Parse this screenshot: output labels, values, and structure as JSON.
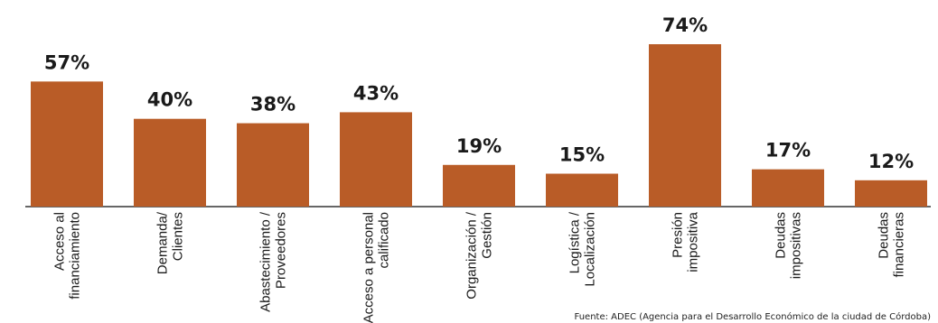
{
  "chart_data": {
    "type": "bar",
    "categories": [
      [
        "Acceso al",
        "financiamiento"
      ],
      [
        "Demanda/",
        "Clientes"
      ],
      [
        "Abastecimiento /",
        "Proveedores"
      ],
      [
        "Acceso a personal",
        "calificado"
      ],
      [
        "Organización /",
        "Gestión"
      ],
      [
        "Logística /",
        "Localización"
      ],
      [
        "Presión",
        "impositiva"
      ],
      [
        "Deudas",
        "impositivas"
      ],
      [
        "Deudas",
        "financieras"
      ]
    ],
    "values": [
      57,
      40,
      38,
      43,
      19,
      15,
      74,
      17,
      12
    ],
    "value_labels": [
      "57%",
      "40%",
      "38%",
      "43%",
      "19%",
      "15%",
      "74%",
      "17%",
      "12%"
    ],
    "ylim": [
      0,
      74
    ],
    "grid": false,
    "bar_color": "#b95c27"
  },
  "source": "Fuente: ADEC (Agencia para el Desarrollo Económico de la ciudad de Córdoba)"
}
